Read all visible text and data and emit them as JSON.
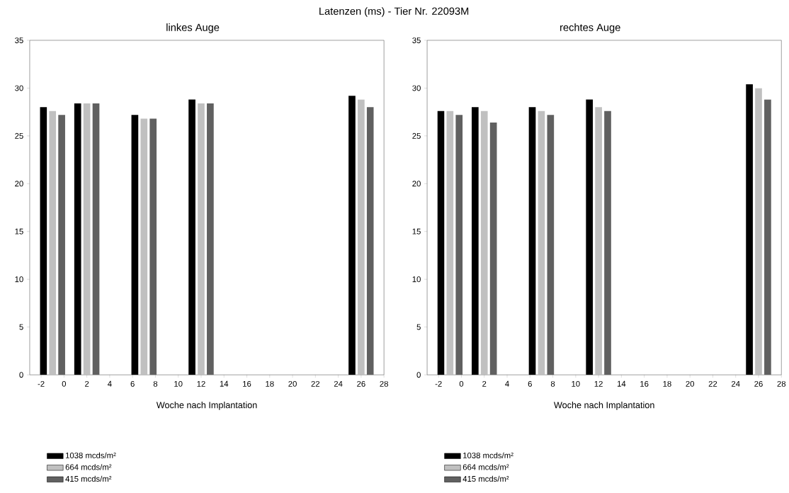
{
  "chart_data": [
    {
      "type": "bar",
      "title": "Latenzen (ms) - Tier Nr. 22093M",
      "subtitle": "linkes Auge",
      "xlabel": "Woche nach Implantation",
      "x": [
        -1,
        2,
        7,
        12,
        26
      ],
      "xlim": [
        -3,
        28
      ],
      "xticks": [
        -2,
        0,
        2,
        4,
        6,
        8,
        10,
        12,
        14,
        16,
        18,
        20,
        22,
        24,
        26,
        28
      ],
      "ylim": [
        0,
        35
      ],
      "yticks": [
        0,
        5,
        10,
        15,
        20,
        25,
        30,
        35
      ],
      "legend": "bottom",
      "series": [
        {
          "name": "1038 mcds/m²",
          "color": "#000000",
          "values": [
            28.0,
            28.4,
            27.2,
            28.8,
            29.2
          ]
        },
        {
          "name": "664 mcds/m²",
          "color": "#c0c0c0",
          "values": [
            27.6,
            28.4,
            26.8,
            28.4,
            28.8
          ]
        },
        {
          "name": "415 mcds/m²",
          "color": "#606060",
          "values": [
            27.2,
            28.4,
            26.8,
            28.4,
            28.0
          ]
        }
      ]
    },
    {
      "type": "bar",
      "subtitle": "rechtes Auge",
      "xlabel": "Woche nach Implantation",
      "x": [
        -1,
        2,
        7,
        12,
        26
      ],
      "xlim": [
        -3,
        28
      ],
      "xticks": [
        -2,
        0,
        2,
        4,
        6,
        8,
        10,
        12,
        14,
        16,
        18,
        20,
        22,
        24,
        26,
        28
      ],
      "ylim": [
        0,
        35
      ],
      "yticks": [
        0,
        5,
        10,
        15,
        20,
        25,
        30,
        35
      ],
      "legend": "bottom",
      "series": [
        {
          "name": "1038 mcds/m²",
          "color": "#000000",
          "values": [
            27.6,
            28.0,
            28.0,
            28.8,
            30.4
          ]
        },
        {
          "name": "664 mcds/m²",
          "color": "#c0c0c0",
          "values": [
            27.6,
            27.6,
            27.6,
            28.0,
            30.0
          ]
        },
        {
          "name": "415 mcds/m²",
          "color": "#606060",
          "values": [
            27.2,
            26.4,
            27.2,
            27.6,
            28.8
          ]
        }
      ]
    }
  ]
}
